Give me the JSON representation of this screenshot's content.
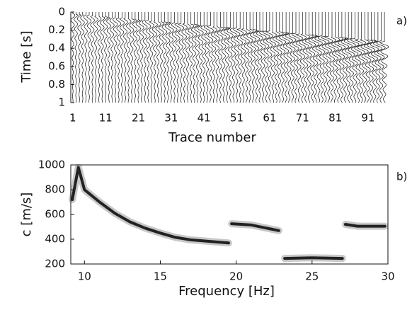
{
  "chart_data": [
    {
      "type": "wiggle",
      "panel_label": "a)",
      "ylabel": "Time [s]",
      "xlabel": "Trace number",
      "xlim": [
        0.4,
        96.4
      ],
      "xticks": [
        1,
        11,
        21,
        31,
        41,
        51,
        61,
        71,
        81,
        91
      ],
      "ylim": [
        0,
        1
      ],
      "yticks": [
        0,
        0.2,
        0.4,
        0.6,
        0.8,
        1
      ],
      "y_reversed": true,
      "color": "#111111"
    },
    {
      "type": "line",
      "panel_label": "b)",
      "ylabel": "c [m/s]",
      "xlabel": "Frequency [Hz]",
      "xlim": [
        9.1,
        30
      ],
      "xticks": [
        10,
        15,
        20,
        25,
        30
      ],
      "ylim": [
        200,
        1000
      ],
      "yticks": [
        200,
        400,
        600,
        800,
        1000
      ],
      "series": [
        {
          "color": "#222222",
          "x": [
            9.2,
            9.6,
            10,
            11,
            12,
            13,
            14,
            15,
            16,
            17,
            18,
            19.5,
            null,
            19.7,
            21,
            22,
            22.8,
            null,
            23.2,
            25,
            27,
            null,
            27.2,
            28,
            29.8
          ],
          "values": [
            720,
            980,
            800,
            700,
            610,
            540,
            490,
            450,
            415,
            395,
            385,
            370,
            null,
            525,
            515,
            490,
            470,
            null,
            245,
            250,
            245,
            null,
            520,
            505,
            505
          ]
        }
      ]
    }
  ]
}
